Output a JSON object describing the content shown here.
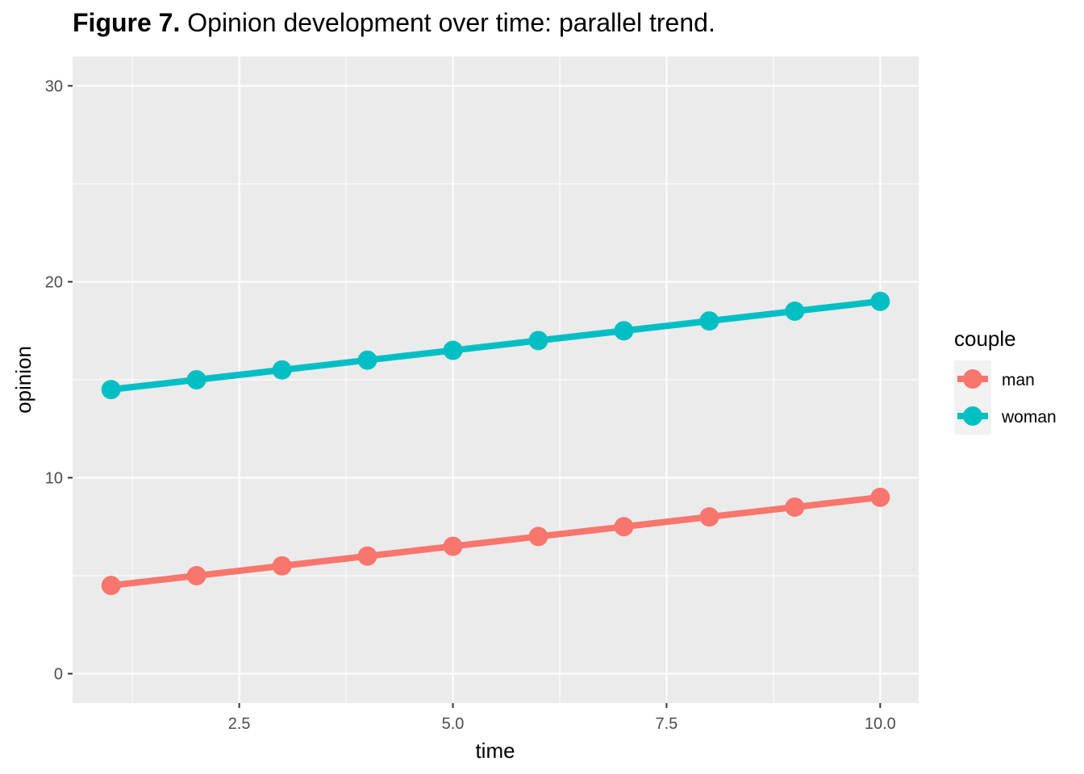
{
  "title": {
    "prefix": "Figure 7.",
    "text": "Opinion development over time: parallel trend."
  },
  "chart_data": {
    "type": "line",
    "xlabel": "time",
    "ylabel": "opinion",
    "xlim": [
      0.55,
      10.45
    ],
    "ylim": [
      -1.5,
      31.5
    ],
    "x_ticks": [
      2.5,
      5.0,
      7.5,
      10.0
    ],
    "x_tick_labels": [
      "2.5",
      "5.0",
      "7.5",
      "10.0"
    ],
    "y_ticks": [
      0,
      10,
      20,
      30
    ],
    "y_tick_labels": [
      "0",
      "10",
      "20",
      "30"
    ],
    "grid": true,
    "legend": {
      "title": "couple",
      "placement": "right"
    },
    "x": [
      1,
      2,
      3,
      4,
      5,
      6,
      7,
      8,
      9,
      10
    ],
    "series": [
      {
        "name": "man",
        "color": "#F8766D",
        "values": [
          4.5,
          5,
          5.5,
          6,
          6.5,
          7,
          7.5,
          8,
          8.5,
          9
        ]
      },
      {
        "name": "woman",
        "color": "#00BFC4",
        "values": [
          14.5,
          15,
          15.5,
          16,
          16.5,
          17,
          17.5,
          18,
          18.5,
          19
        ]
      }
    ]
  }
}
